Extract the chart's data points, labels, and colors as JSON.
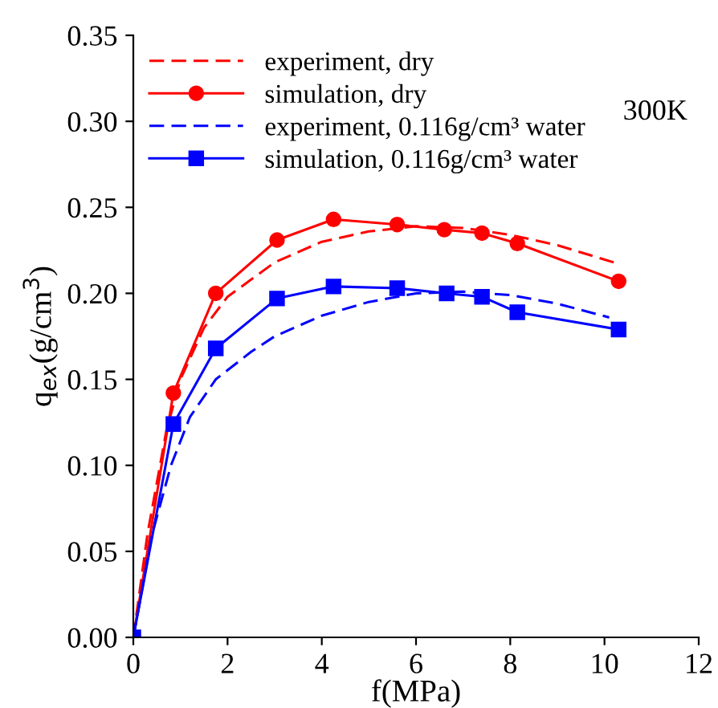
{
  "chart_data": {
    "type": "line",
    "xlabel": "f(MPa)",
    "ylabel": "q$_{ex}$(g/cm$^{3}$)",
    "xlim": [
      0,
      12
    ],
    "ylim": [
      0,
      0.35
    ],
    "xticks": [
      0,
      2,
      4,
      6,
      8,
      10,
      12
    ],
    "yticks": [
      {
        "value": 0,
        "label": "0.00"
      },
      {
        "value": 0.05,
        "label": "0.05"
      },
      {
        "value": 0.1,
        "label": "0.10"
      },
      {
        "value": 0.15,
        "label": "0.15"
      },
      {
        "value": 0.2,
        "label": "0.20"
      },
      {
        "value": 0.25,
        "label": "0.25"
      },
      {
        "value": 0.3,
        "label": "0.30"
      },
      {
        "value": 0.35,
        "label": "0.35"
      }
    ],
    "grid": false,
    "legend": "top left",
    "annotations": [
      "300K"
    ],
    "series": [
      {
        "name": "experiment, dry",
        "color": "#ff0000",
        "line_style": "dashed",
        "marker": "none",
        "x": [
          0,
          0.3,
          0.7,
          1,
          1.5,
          2,
          3,
          4,
          5,
          6,
          7,
          8,
          9,
          10.2
        ],
        "values": [
          0,
          0.06,
          0.12,
          0.15,
          0.18,
          0.198,
          0.218,
          0.23,
          0.236,
          0.239,
          0.238,
          0.234,
          0.228,
          0.218
        ]
      },
      {
        "name": "simulation, dry",
        "color": "#ff0000",
        "line_style": "solid",
        "marker": "circle",
        "x": [
          0,
          0.85,
          1.75,
          3.05,
          4.25,
          5.6,
          6.6,
          7.4,
          8.15,
          10.3
        ],
        "values": [
          0,
          0.142,
          0.2,
          0.231,
          0.243,
          0.24,
          0.237,
          0.235,
          0.229,
          0.207
        ]
      },
      {
        "name": "experiment, 0.116g/cm³ water",
        "color": "#0000ff",
        "line_style": "dashed",
        "marker": "none",
        "x": [
          0,
          0.4,
          0.8,
          1.2,
          1.75,
          2.5,
          3,
          4,
          5,
          6,
          7,
          8,
          9,
          10.1
        ],
        "values": [
          0,
          0.06,
          0.1,
          0.128,
          0.15,
          0.166,
          0.175,
          0.187,
          0.195,
          0.2,
          0.201,
          0.199,
          0.194,
          0.186
        ]
      },
      {
        "name": "simulation, 0.116g/cm³ water",
        "color": "#0000ff",
        "line_style": "solid",
        "marker": "square",
        "x": [
          0,
          0.85,
          1.75,
          3.05,
          4.25,
          5.6,
          6.65,
          7.4,
          8.15,
          10.3
        ],
        "values": [
          0,
          0.124,
          0.168,
          0.197,
          0.204,
          0.203,
          0.2,
          0.198,
          0.189,
          0.179
        ]
      }
    ]
  }
}
